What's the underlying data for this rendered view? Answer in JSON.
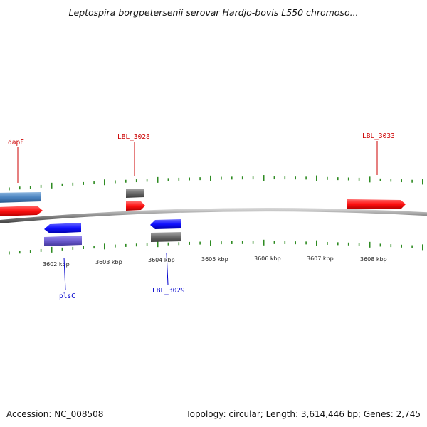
{
  "title": "Leptospira borgpetersenii serovar Hardjo-bovis L550 chromoso...",
  "footer": {
    "accession": "Accession: NC_008508",
    "summary": "Topology: circular; Length: 3,614,446 bp; Genes: 2,745"
  },
  "colors": {
    "backbone": "#8a8a8a",
    "tick": "#2e8b22",
    "forward_gene": "#ff1a1a",
    "reverse_gene": "#1a1aff",
    "pseudo_gene": "#6a6a6a",
    "rna_gene": "#4a82bf",
    "other_gene": "#6a5acd",
    "label_forward": "#cc0000",
    "label_reverse": "#0000cc"
  },
  "axis": {
    "labels": [
      "3602 kbp",
      "3603 kbp",
      "3604 kbp",
      "3605 kbp",
      "3606 kbp",
      "3607 kbp",
      "3608 kbp"
    ]
  },
  "genes": [
    {
      "id": "g1",
      "kind": "rna",
      "strand": "+"
    },
    {
      "id": "g2",
      "kind": "forward",
      "strand": "+",
      "label": "dapF"
    },
    {
      "id": "g3",
      "kind": "pseudo",
      "strand": "+"
    },
    {
      "id": "g4",
      "kind": "forward",
      "strand": "+",
      "label": "LBL_3028"
    },
    {
      "id": "g5",
      "kind": "forward",
      "strand": "+",
      "label": "LBL_3033"
    },
    {
      "id": "g6",
      "kind": "reverse",
      "strand": "-",
      "label": "plsC"
    },
    {
      "id": "g7",
      "kind": "other",
      "strand": "-"
    },
    {
      "id": "g8",
      "kind": "reverse",
      "strand": "-",
      "label": "LBL_3029"
    },
    {
      "id": "g9",
      "kind": "pseudo",
      "strand": "-"
    }
  ]
}
